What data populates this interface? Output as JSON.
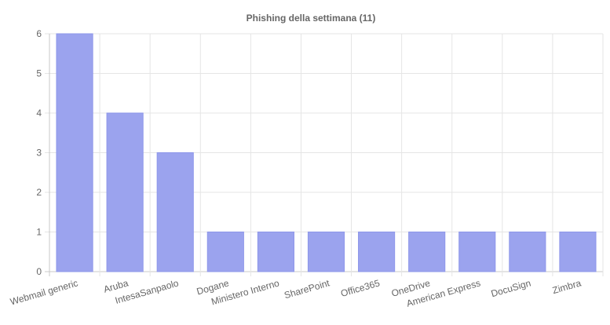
{
  "chart_data": {
    "type": "bar",
    "title": "Phishing della settimana (11)",
    "categories": [
      "Webmail generic",
      "Aruba",
      "IntesaSanpaolo",
      "Dogane",
      "Ministero Interno",
      "SharePoint",
      "Office365",
      "OneDrive",
      "American Express",
      "DocuSign",
      "Zimbra"
    ],
    "values": [
      6,
      4,
      3,
      1,
      1,
      1,
      1,
      1,
      1,
      1,
      1
    ],
    "ylim": [
      0,
      6
    ],
    "yticks": [
      0,
      1,
      2,
      3,
      4,
      5,
      6
    ],
    "grid": true,
    "legend": "none",
    "colors": {
      "bar_fill": "#9ba3ee",
      "bar_stroke": "#8e97ea",
      "grid": "#e5e5e5",
      "axis": "#c8c8c8",
      "text": "#666666"
    }
  }
}
